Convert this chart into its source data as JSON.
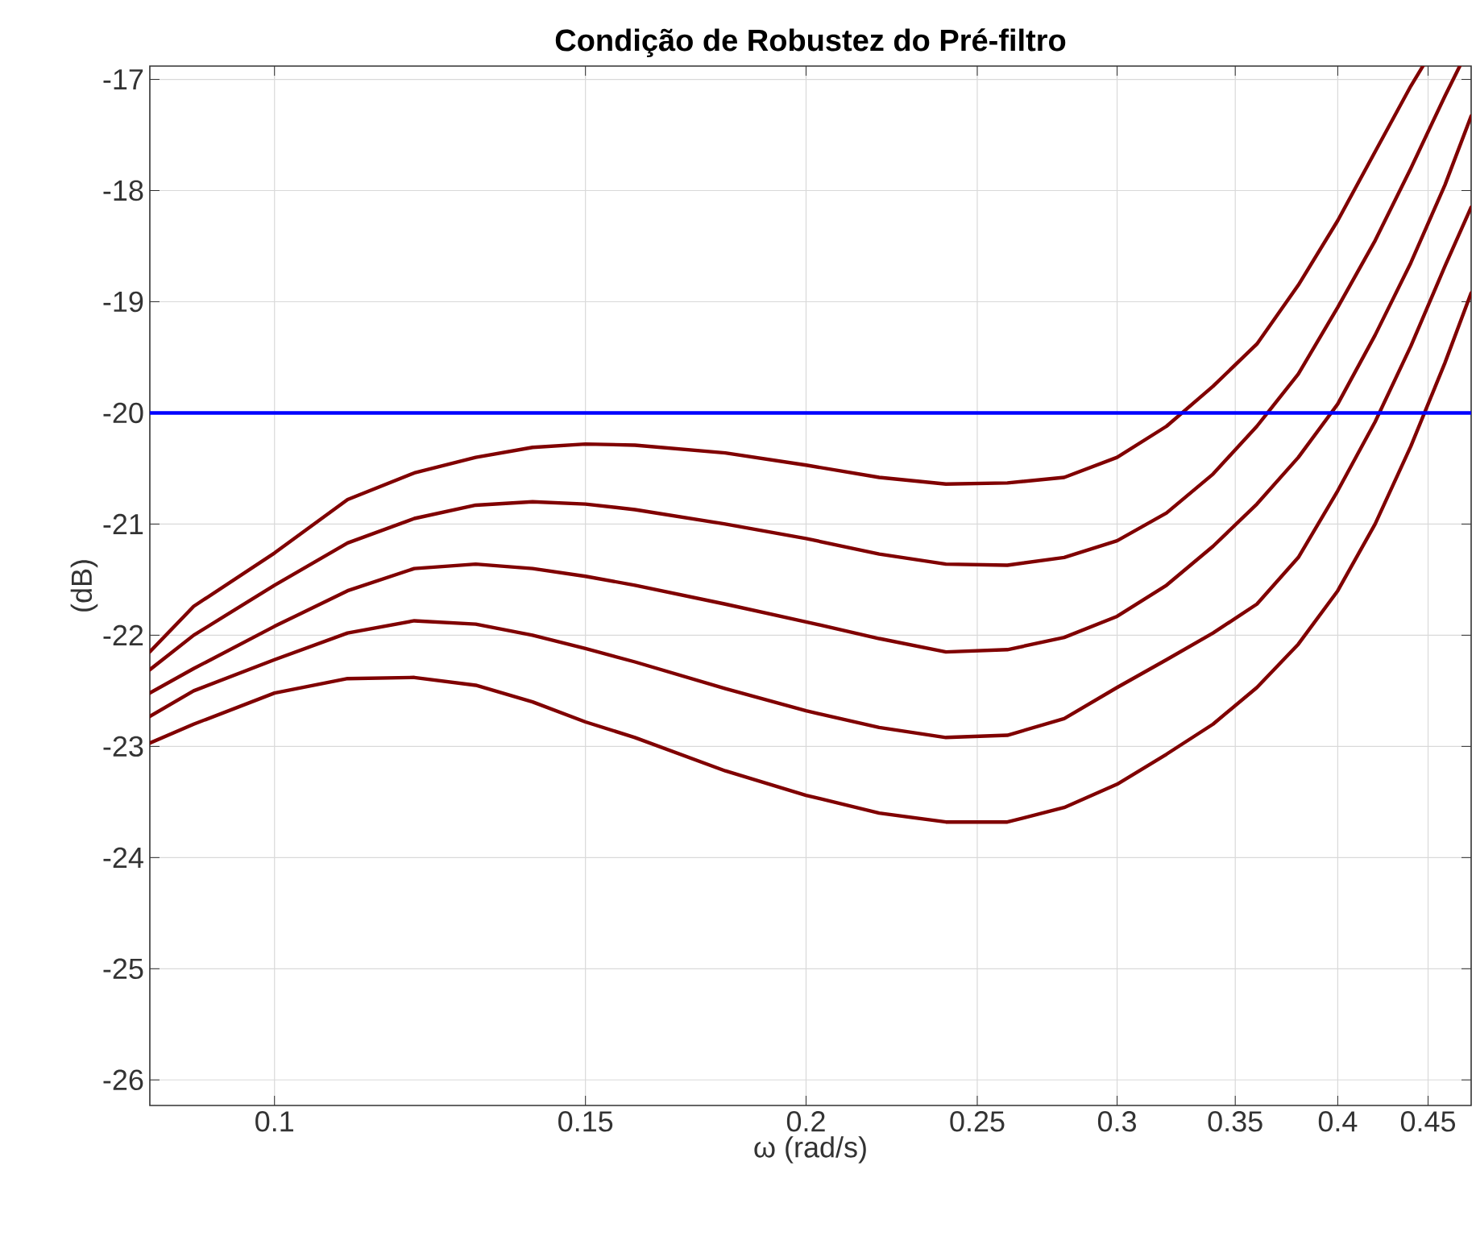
{
  "chart_data": {
    "type": "line",
    "title": "Condição de Robustez do Pré-filtro",
    "xlabel": "ω (rad/s)",
    "ylabel": "(dB)",
    "log": "x",
    "grid": true,
    "line_style": "solid",
    "marker": "none",
    "xlim": [
      0.085,
      0.476
    ],
    "ylim": [
      -26.23,
      -16.88
    ],
    "xticks": [
      0.1,
      0.15,
      0.2,
      0.25,
      0.3,
      0.35,
      0.4,
      0.45
    ],
    "yticks": [
      -26,
      -25,
      -24,
      -23,
      -22,
      -21,
      -20,
      -19,
      -18,
      -17
    ],
    "ref_lines": [
      {
        "axis": "y",
        "value": -20,
        "color": "#0000ff"
      }
    ],
    "series": [
      {
        "color": "#800000",
        "x": [
          0.085,
          0.09,
          0.1,
          0.11,
          0.12,
          0.13,
          0.14,
          0.15,
          0.16,
          0.18,
          0.2,
          0.22,
          0.24,
          0.26,
          0.28,
          0.3,
          0.32,
          0.34,
          0.36,
          0.38,
          0.4,
          0.42,
          0.44,
          0.447
        ],
        "values": [
          -22.15,
          -21.74,
          -21.26,
          -20.78,
          -20.54,
          -20.4,
          -20.31,
          -20.28,
          -20.29,
          -20.36,
          -20.47,
          -20.58,
          -20.64,
          -20.63,
          -20.58,
          -20.4,
          -20.12,
          -19.76,
          -19.38,
          -18.85,
          -18.27,
          -17.65,
          -17.06,
          -16.88
        ]
      },
      {
        "color": "#800000",
        "x": [
          0.085,
          0.09,
          0.1,
          0.11,
          0.12,
          0.13,
          0.14,
          0.15,
          0.16,
          0.18,
          0.2,
          0.22,
          0.24,
          0.26,
          0.28,
          0.3,
          0.32,
          0.34,
          0.36,
          0.38,
          0.4,
          0.42,
          0.44,
          0.46,
          0.469
        ],
        "values": [
          -22.31,
          -22.0,
          -21.55,
          -21.17,
          -20.95,
          -20.83,
          -20.8,
          -20.82,
          -20.87,
          -21.0,
          -21.13,
          -21.27,
          -21.36,
          -21.37,
          -21.3,
          -21.15,
          -20.9,
          -20.55,
          -20.12,
          -19.65,
          -19.05,
          -18.45,
          -17.8,
          -17.15,
          -16.88
        ]
      },
      {
        "color": "#800000",
        "x": [
          0.085,
          0.09,
          0.1,
          0.11,
          0.12,
          0.13,
          0.14,
          0.15,
          0.16,
          0.18,
          0.2,
          0.22,
          0.24,
          0.26,
          0.28,
          0.3,
          0.32,
          0.34,
          0.36,
          0.38,
          0.4,
          0.42,
          0.44,
          0.46,
          0.476
        ],
        "values": [
          -22.52,
          -22.3,
          -21.92,
          -21.6,
          -21.4,
          -21.36,
          -21.4,
          -21.47,
          -21.55,
          -21.72,
          -21.88,
          -22.03,
          -22.15,
          -22.13,
          -22.02,
          -21.83,
          -21.55,
          -21.2,
          -20.82,
          -20.4,
          -19.92,
          -19.3,
          -18.65,
          -17.95,
          -17.33
        ]
      },
      {
        "color": "#800000",
        "x": [
          0.085,
          0.09,
          0.1,
          0.11,
          0.12,
          0.13,
          0.14,
          0.15,
          0.16,
          0.18,
          0.2,
          0.22,
          0.24,
          0.26,
          0.28,
          0.3,
          0.32,
          0.34,
          0.36,
          0.38,
          0.4,
          0.42,
          0.44,
          0.46,
          0.476
        ],
        "values": [
          -22.73,
          -22.5,
          -22.22,
          -21.98,
          -21.87,
          -21.9,
          -22.0,
          -22.12,
          -22.24,
          -22.48,
          -22.68,
          -22.83,
          -22.92,
          -22.9,
          -22.75,
          -22.47,
          -22.22,
          -21.98,
          -21.72,
          -21.3,
          -20.7,
          -20.08,
          -19.4,
          -18.68,
          -18.15
        ]
      },
      {
        "color": "#800000",
        "x": [
          0.085,
          0.09,
          0.1,
          0.11,
          0.12,
          0.13,
          0.14,
          0.15,
          0.16,
          0.18,
          0.2,
          0.22,
          0.24,
          0.26,
          0.28,
          0.3,
          0.32,
          0.34,
          0.36,
          0.38,
          0.4,
          0.42,
          0.44,
          0.46,
          0.476
        ],
        "values": [
          -22.97,
          -22.8,
          -22.52,
          -22.39,
          -22.38,
          -22.45,
          -22.6,
          -22.78,
          -22.92,
          -23.22,
          -23.44,
          -23.6,
          -23.68,
          -23.68,
          -23.55,
          -23.34,
          -23.07,
          -22.8,
          -22.47,
          -22.08,
          -21.6,
          -21.0,
          -20.3,
          -19.55,
          -18.92
        ]
      }
    ]
  }
}
